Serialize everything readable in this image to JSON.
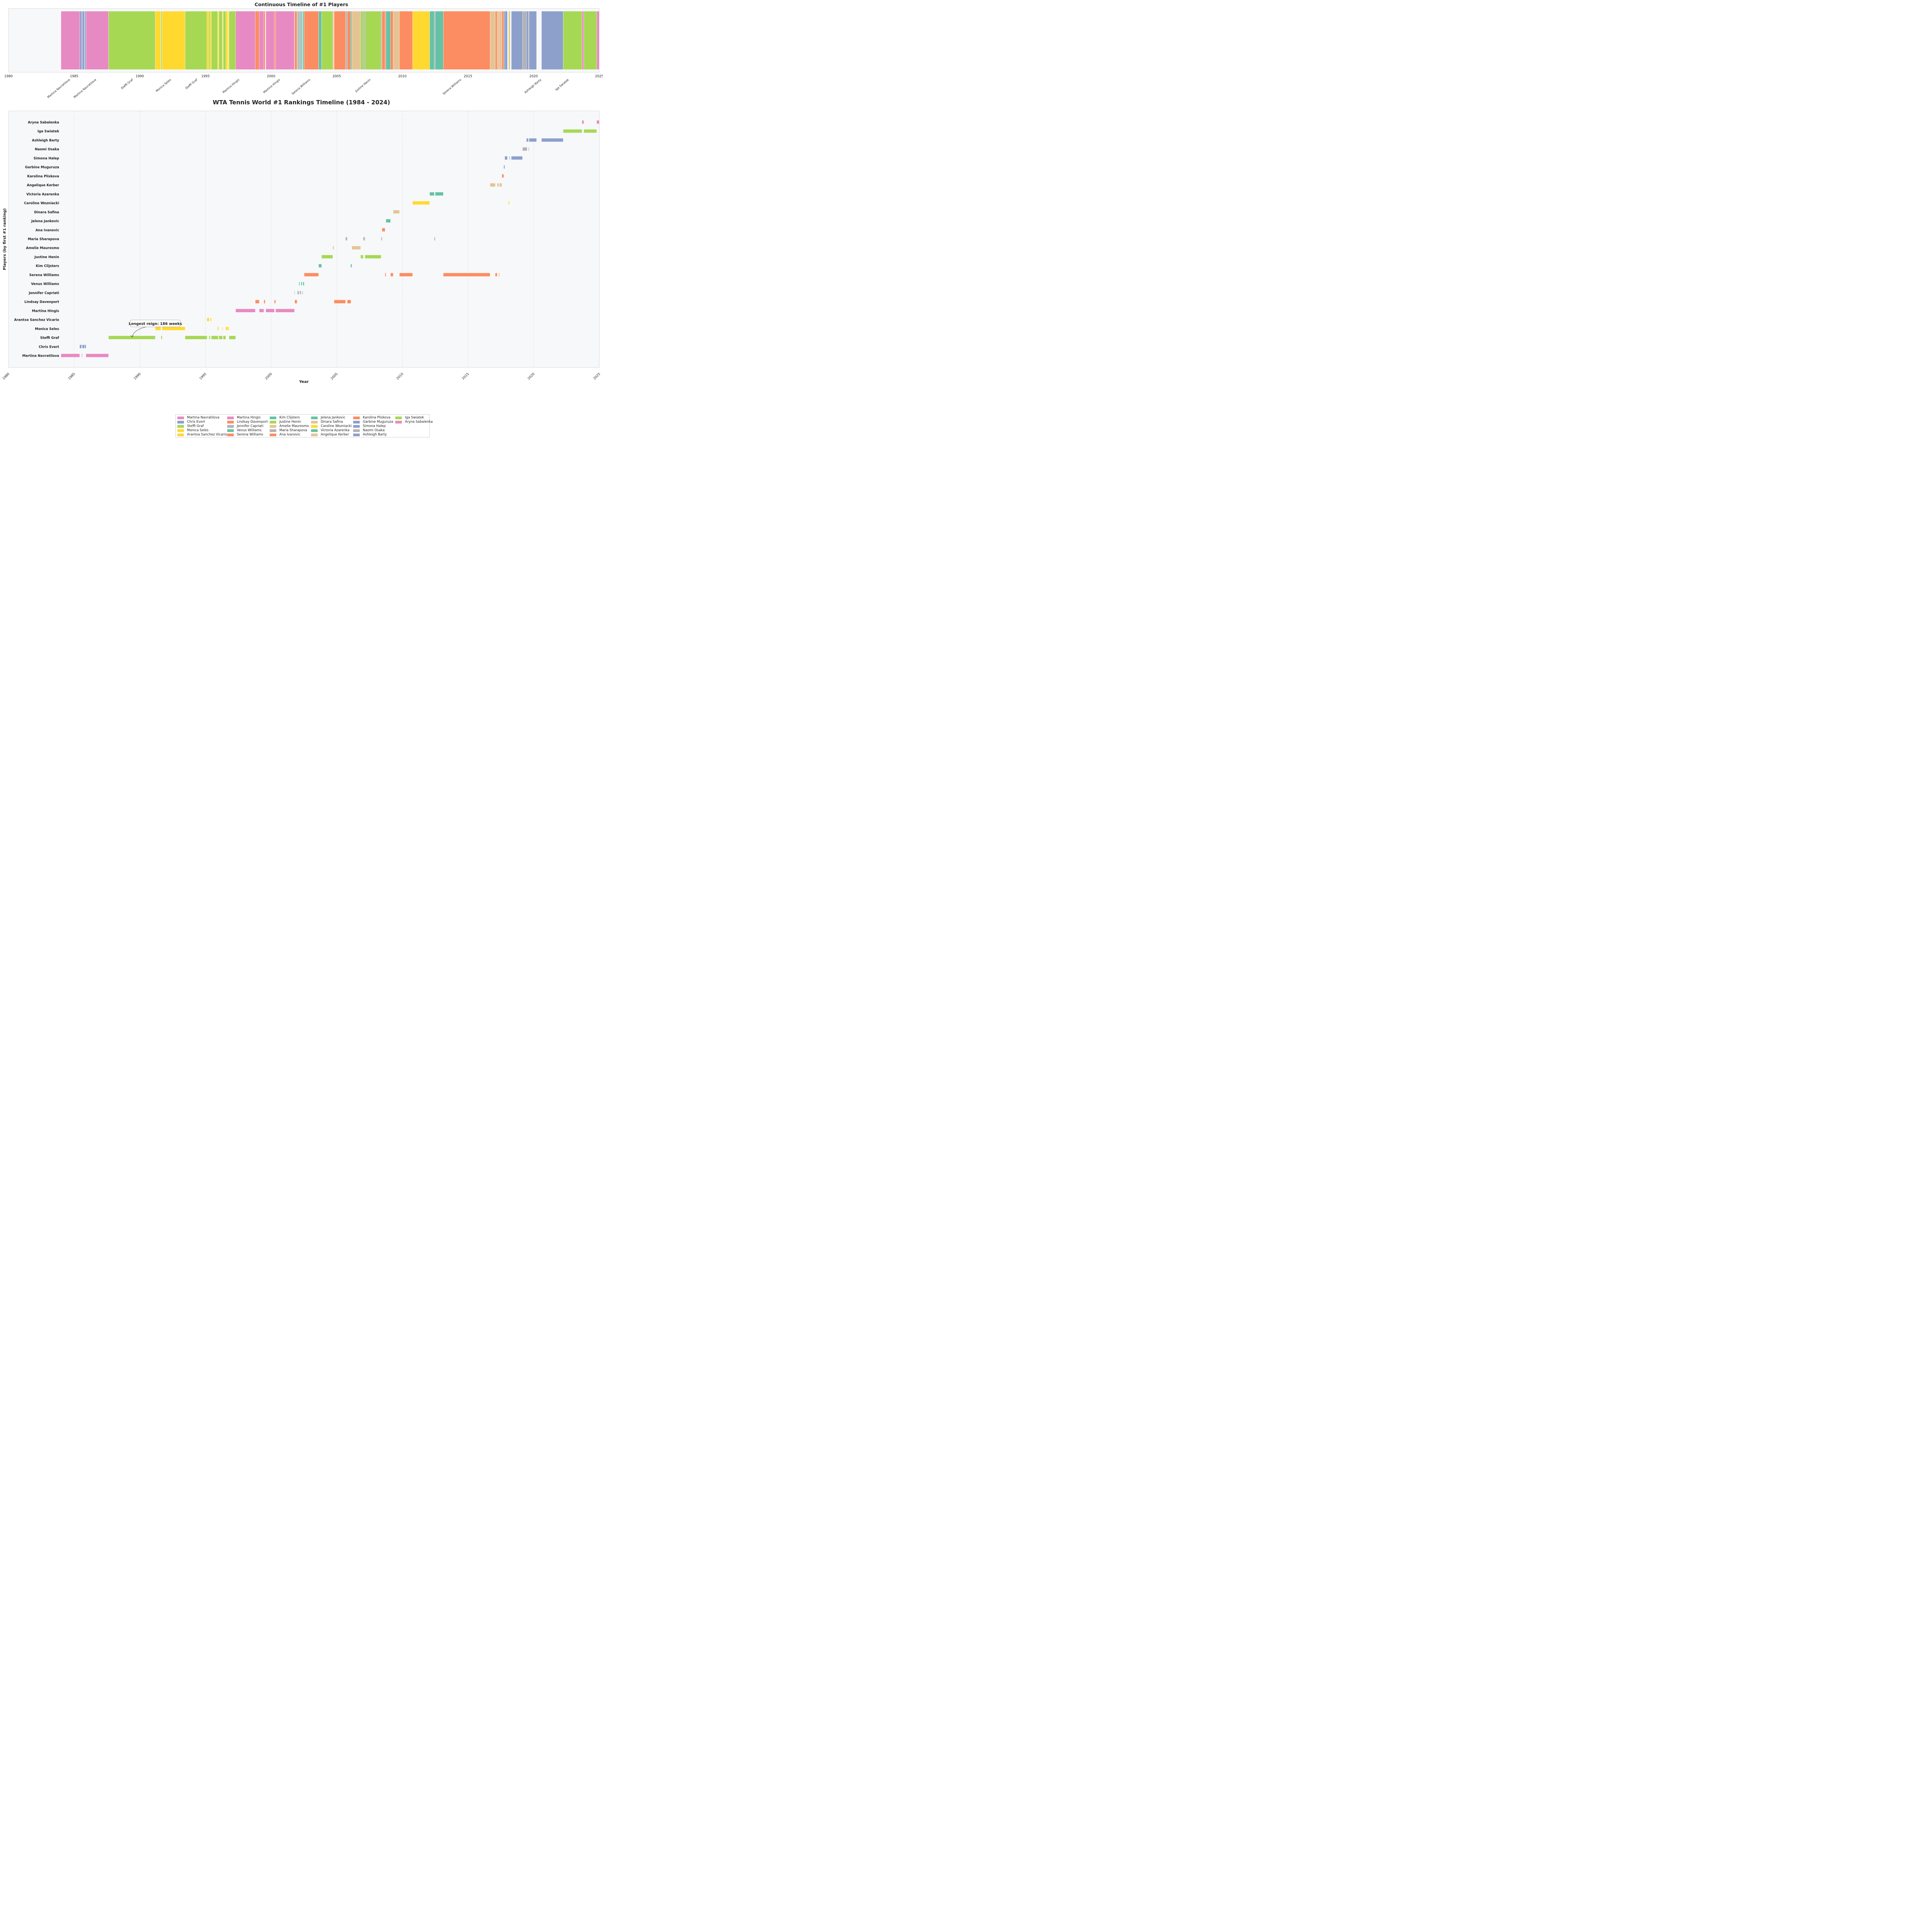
{
  "chart_data": [
    {
      "type": "timeline-strip",
      "title": "Continuous Timeline of #1 Players",
      "xlim": [
        1980,
        2025
      ],
      "xticks": [
        1980,
        1985,
        1990,
        1995,
        2000,
        2005,
        2010,
        2015,
        2020,
        2025
      ],
      "annotations": [
        {
          "label": "Martina Navratilova",
          "x": 1984.7
        },
        {
          "label": "Martina Navratilova",
          "x": 1986.7
        },
        {
          "label": "Steffi Graf",
          "x": 1989.5
        },
        {
          "label": "Monica Seles",
          "x": 1992.4
        },
        {
          "label": "Steffi Graf",
          "x": 1994.4
        },
        {
          "label": "Martina Hingis",
          "x": 1997.6
        },
        {
          "label": "Martina Hingis",
          "x": 2000.7
        },
        {
          "label": "Serena Williams",
          "x": 2003.0
        },
        {
          "label": "Justine Henin",
          "x": 2007.6
        },
        {
          "label": "Serena Williams",
          "x": 2014.5
        },
        {
          "label": "Ashleigh Barty",
          "x": 2020.6
        },
        {
          "label": "Iga Swiatek",
          "x": 2022.7
        }
      ]
    },
    {
      "type": "gantt",
      "title": "WTA Tennis World #1 Rankings Timeline (1984 - 2024)",
      "xlabel": "Year",
      "ylabel": "Players (by first #1 ranking)",
      "xlim": [
        1980,
        2025
      ],
      "xticks": [
        1980,
        1985,
        1990,
        1995,
        2000,
        2005,
        2010,
        2015,
        2020,
        2025
      ],
      "annotation": {
        "text": "Longest reign: 186 weeks",
        "x": 1989.4,
        "player": "Steffi Graf"
      },
      "players": [
        {
          "name": "Martina Navratilova",
          "color": "#e78ac3",
          "reigns": [
            [
              1984.0,
              1985.42
            ],
            [
              1985.57,
              1985.62
            ],
            [
              1985.9,
              1987.62
            ]
          ]
        },
        {
          "name": "Chris Evert",
          "color": "#8da0cb",
          "reigns": [
            [
              1985.42,
              1985.57
            ],
            [
              1985.62,
              1985.78
            ],
            [
              1985.8,
              1985.9
            ]
          ]
        },
        {
          "name": "Steffi Graf",
          "color": "#a6d854",
          "reigns": [
            [
              1987.62,
              1991.18
            ],
            [
              1991.62,
              1991.7
            ],
            [
              1993.45,
              1995.12
            ],
            [
              1995.28,
              1995.37
            ],
            [
              1995.45,
              1995.97
            ],
            [
              1996.02,
              1996.3
            ],
            [
              1996.35,
              1996.55
            ],
            [
              1996.8,
              1997.3
            ]
          ]
        },
        {
          "name": "Monica Seles",
          "color": "#ffd92f",
          "reigns": [
            [
              1991.18,
              1991.6
            ],
            [
              1991.7,
              1993.45
            ],
            [
              1995.92,
              1996.0
            ],
            [
              1996.28,
              1996.33
            ],
            [
              1996.55,
              1996.7
            ],
            [
              1996.73,
              1996.8
            ]
          ]
        },
        {
          "name": "Arantxa Sanchez Vicario",
          "color": "#ffd92f",
          "reigns": [
            [
              1995.12,
              1995.28
            ],
            [
              1995.37,
              1995.45
            ]
          ]
        },
        {
          "name": "Martina Hingis",
          "color": "#e78ac3",
          "reigns": [
            [
              1997.3,
              1998.8
            ],
            [
              1999.1,
              1999.45
            ],
            [
              1999.6,
              2000.25
            ],
            [
              2000.35,
              2001.78
            ]
          ]
        },
        {
          "name": "Lindsay Davenport",
          "color": "#fc8d62",
          "reigns": [
            [
              1998.8,
              1999.1
            ],
            [
              1999.45,
              1999.55
            ],
            [
              2000.25,
              2000.35
            ],
            [
              2001.8,
              2001.98
            ],
            [
              2004.8,
              2005.67
            ],
            [
              2005.8,
              2006.08
            ]
          ]
        },
        {
          "name": "Jennifer Capriati",
          "color": "#b3b3b3",
          "reigns": [
            [
              2001.78,
              2001.82
            ],
            [
              2002.0,
              2002.12
            ],
            [
              2002.18,
              2002.28
            ],
            [
              2002.38,
              2002.43
            ]
          ]
        },
        {
          "name": "Venus Williams",
          "color": "#66c2a5",
          "reigns": [
            [
              2002.12,
              2002.18
            ],
            [
              2002.28,
              2002.36
            ],
            [
              2002.43,
              2002.52
            ]
          ]
        },
        {
          "name": "Serena Williams",
          "color": "#fc8d62",
          "reigns": [
            [
              2002.52,
              2003.62
            ],
            [
              2008.68,
              2008.75
            ],
            [
              2009.1,
              2009.3
            ],
            [
              2009.78,
              2010.78
            ],
            [
              2013.12,
              2016.68
            ],
            [
              2017.08,
              2017.22
            ],
            [
              2017.35,
              2017.4
            ]
          ]
        },
        {
          "name": "Kim Clijsters",
          "color": "#66c2a5",
          "reigns": [
            [
              2003.62,
              2003.85
            ],
            [
              2006.06,
              2006.15
            ]
          ]
        },
        {
          "name": "Justine Henin",
          "color": "#a6d854",
          "reigns": [
            [
              2003.85,
              2004.7
            ],
            [
              2006.82,
              2007.02
            ],
            [
              2007.15,
              2008.38
            ]
          ]
        },
        {
          "name": "Amelie Mauresmo",
          "color": "#e5c494",
          "reigns": [
            [
              2004.7,
              2004.78
            ],
            [
              2006.15,
              2006.82
            ]
          ]
        },
        {
          "name": "Maria Sharapova",
          "color": "#b3b3b3",
          "reigns": [
            [
              2005.67,
              2005.8
            ],
            [
              2007.02,
              2007.15
            ],
            [
              2008.38,
              2008.45
            ],
            [
              2012.43,
              2012.5
            ]
          ]
        },
        {
          "name": "Ana Ivanovic",
          "color": "#fc8d62",
          "reigns": [
            [
              2008.45,
              2008.68
            ]
          ]
        },
        {
          "name": "Jelena Jankovic",
          "color": "#66c2a5",
          "reigns": [
            [
              2008.75,
              2009.1
            ]
          ]
        },
        {
          "name": "Dinara Safina",
          "color": "#e5c494",
          "reigns": [
            [
              2009.3,
              2009.78
            ]
          ]
        },
        {
          "name": "Caroline Wozniacki",
          "color": "#ffd92f",
          "reigns": [
            [
              2010.78,
              2012.08
            ],
            [
              2018.08,
              2018.15
            ]
          ]
        },
        {
          "name": "Victoria Azarenka",
          "color": "#66c2a5",
          "reigns": [
            [
              2012.08,
              2012.43
            ],
            [
              2012.5,
              2013.12
            ]
          ]
        },
        {
          "name": "Angelique Kerber",
          "color": "#e5c494",
          "reigns": [
            [
              2016.68,
              2017.08
            ],
            [
              2017.22,
              2017.35
            ],
            [
              2017.4,
              2017.58
            ]
          ]
        },
        {
          "name": "Karolina Pliskova",
          "color": "#fc8d62",
          "reigns": [
            [
              2017.58,
              2017.72
            ]
          ]
        },
        {
          "name": "Garbine Muguruza",
          "color": "#8da0cb",
          "reigns": [
            [
              2017.72,
              2017.8
            ]
          ]
        },
        {
          "name": "Simona Halep",
          "color": "#8da0cb",
          "reigns": [
            [
              2017.8,
              2018.0
            ],
            [
              2018.15,
              2018.2
            ],
            [
              2018.3,
              2019.15
            ]
          ]
        },
        {
          "name": "Naomi Osaka",
          "color": "#b3b3b3",
          "reigns": [
            [
              2019.15,
              2019.5
            ],
            [
              2019.6,
              2019.65
            ]
          ]
        },
        {
          "name": "Ashleigh Barty",
          "color": "#8da0cb",
          "reigns": [
            [
              2019.45,
              2019.6
            ],
            [
              2019.65,
              2020.22
            ],
            [
              2020.6,
              2022.25
            ]
          ]
        },
        {
          "name": "Iga Swiatek",
          "color": "#a6d854",
          "reigns": [
            [
              2022.25,
              2023.68
            ],
            [
              2023.82,
              2024.8
            ]
          ]
        },
        {
          "name": "Aryna Sabalenka",
          "color": "#e78ac3",
          "reigns": [
            [
              2023.68,
              2023.82
            ],
            [
              2024.8,
              2025.0
            ]
          ]
        }
      ]
    }
  ]
}
